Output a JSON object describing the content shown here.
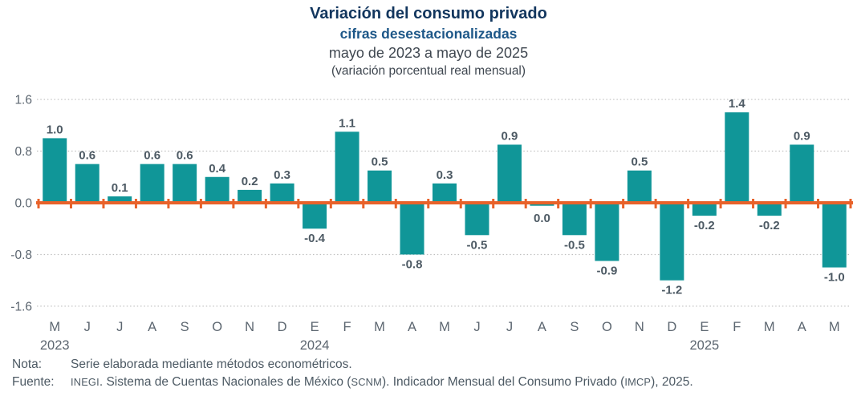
{
  "header": {
    "title": "Variación del consumo privado",
    "subtitle": "cifras desestacionalizadas",
    "period": "mayo de 2023 a mayo de 2025",
    "unit": "(variación porcentual real mensual)"
  },
  "chart_data": {
    "type": "bar",
    "categories": [
      "M",
      "J",
      "J",
      "A",
      "S",
      "O",
      "N",
      "D",
      "E",
      "F",
      "M",
      "A",
      "M",
      "J",
      "J",
      "A",
      "S",
      "O",
      "N",
      "D",
      "E",
      "F",
      "M",
      "A",
      "M"
    ],
    "values": [
      1.0,
      0.6,
      0.1,
      0.6,
      0.6,
      0.4,
      0.2,
      0.3,
      -0.4,
      1.1,
      0.5,
      -0.8,
      0.3,
      -0.5,
      0.9,
      0.0,
      -0.5,
      -0.9,
      0.5,
      -1.2,
      -0.2,
      1.4,
      -0.2,
      0.9,
      -1.0
    ],
    "bar_labels": [
      "1.0",
      "0.6",
      "0.1",
      "0.6",
      "0.6",
      "0.4",
      "0.2",
      "0.3",
      "-0.4",
      "1.1",
      "0.5",
      "-0.8",
      "0.3",
      "-0.5",
      "0.9",
      "0.0",
      "-0.5",
      "-0.9",
      "0.5",
      "-1.2",
      "-0.2",
      "1.4",
      "-0.2",
      "0.9",
      "-1.0"
    ],
    "year_markers": [
      {
        "index": 0,
        "label": "2023"
      },
      {
        "index": 8,
        "label": "2024"
      },
      {
        "index": 20,
        "label": "2025"
      }
    ],
    "y_ticks": [
      1.6,
      0.8,
      0.0,
      -0.8,
      -1.6
    ],
    "y_tick_labels": [
      "1.6",
      "0.8",
      "0.0",
      "-0.8",
      "-1.6"
    ],
    "ylim": [
      -1.6,
      1.6
    ],
    "grid": "dotted horizontal lines at 1.6, 0.8, -0.8, -1.6; solid orange zero axis with ticks",
    "legend": "none",
    "title": "Variación del consumo privado",
    "xlabel": "",
    "ylabel": "",
    "colors": {
      "bar": "#109698",
      "zero_line": "#E8622A",
      "value_label": "#4D5A64",
      "axis_label": "#5C6670",
      "grid": "#BFBFBF",
      "title": "#12365E",
      "subtitle": "#1D5788"
    }
  },
  "footer": {
    "nota_label": "Nota:",
    "nota_text": "Serie elaborada mediante métodos econométricos.",
    "fuente_label": "Fuente:",
    "fuente_parts": [
      {
        "text": "INEGI",
        "caps": true
      },
      {
        "text": ". Sistema de Cuentas Nacionales de México (",
        "caps": false
      },
      {
        "text": "SCNM",
        "caps": true
      },
      {
        "text": "). Indicador Mensual del Consumo Privado (",
        "caps": false
      },
      {
        "text": "IMCP",
        "caps": true
      },
      {
        "text": "), 2025.",
        "caps": false
      }
    ]
  }
}
